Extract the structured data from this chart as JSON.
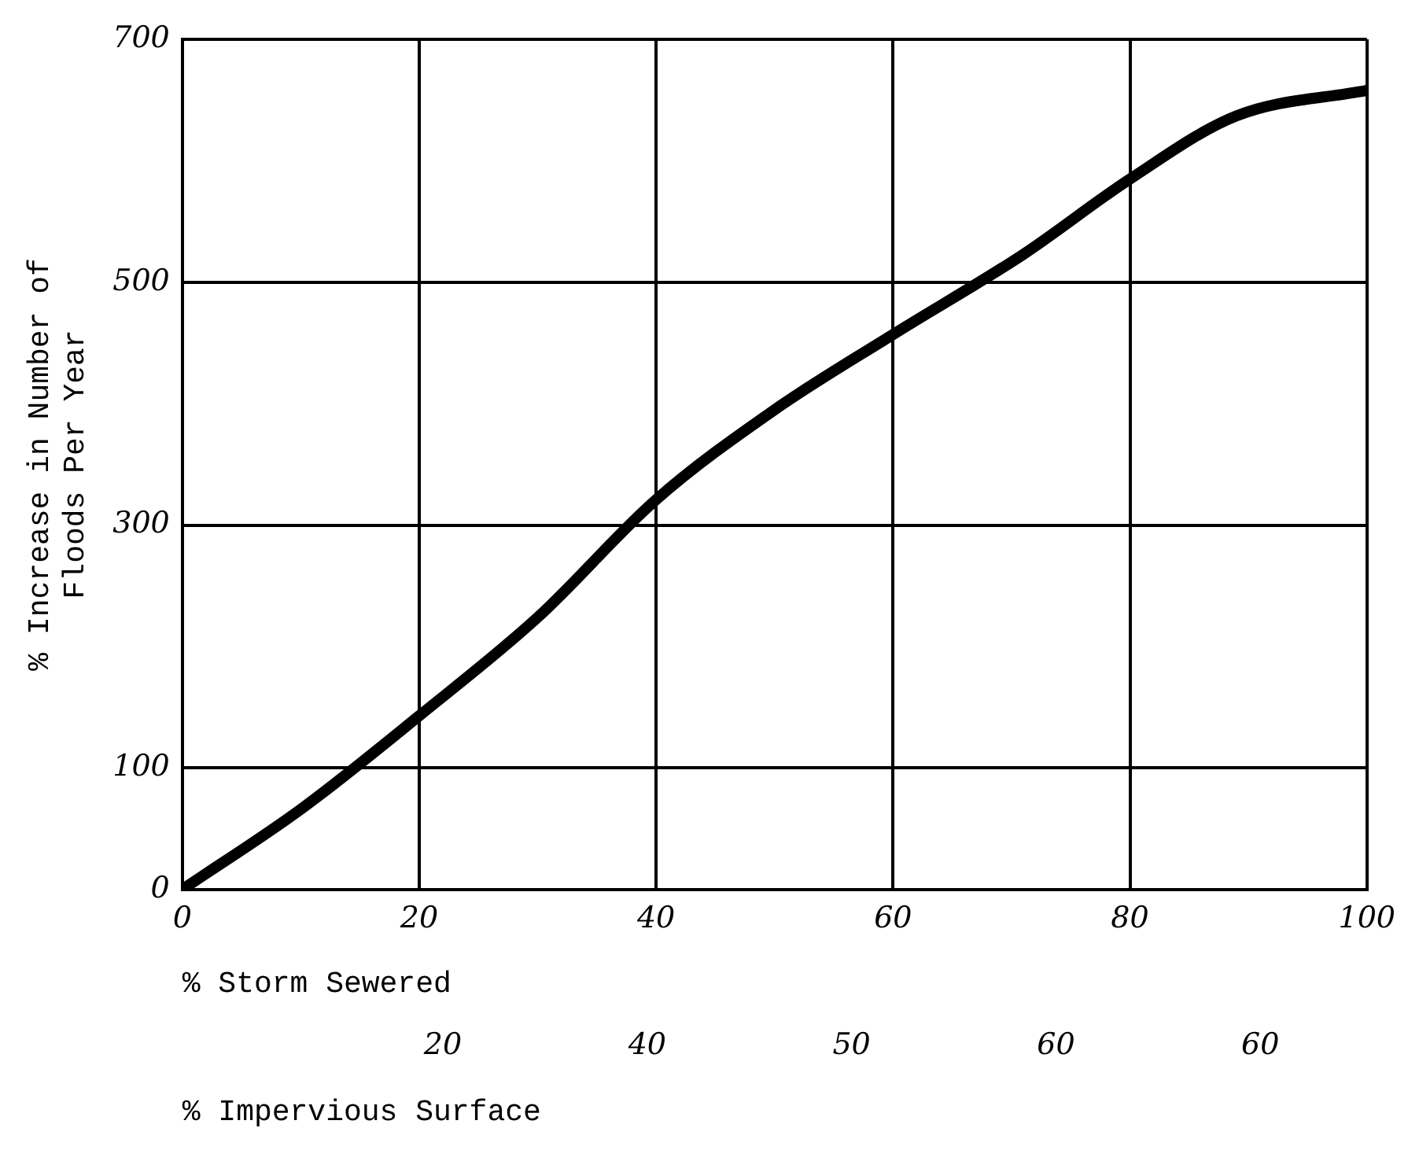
{
  "chart_data": {
    "type": "line",
    "xlabel": "% Storm Sewered",
    "x2label": "% Impervious Surface",
    "ylabel": "% Increase in Number of\nFloods Per Year",
    "x": [
      0,
      10,
      20,
      30,
      40,
      50,
      60,
      71,
      80,
      89,
      100
    ],
    "series": [
      {
        "color": "#000000",
        "values": [
          0,
          66,
          143,
          224,
          321,
          395,
          457,
          523,
          585,
          637,
          658
        ]
      }
    ],
    "xlim": [
      0,
      100
    ],
    "xticks": [
      0,
      20,
      40,
      60,
      80,
      100
    ],
    "annotations": [
      "20",
      "40",
      "50",
      "60",
      "60"
    ],
    "ylim": [
      0,
      700
    ],
    "yticks": [
      0,
      100,
      300,
      500,
      700
    ],
    "grid": true,
    "legend": false,
    "marker": "none",
    "line_style": "solid"
  }
}
